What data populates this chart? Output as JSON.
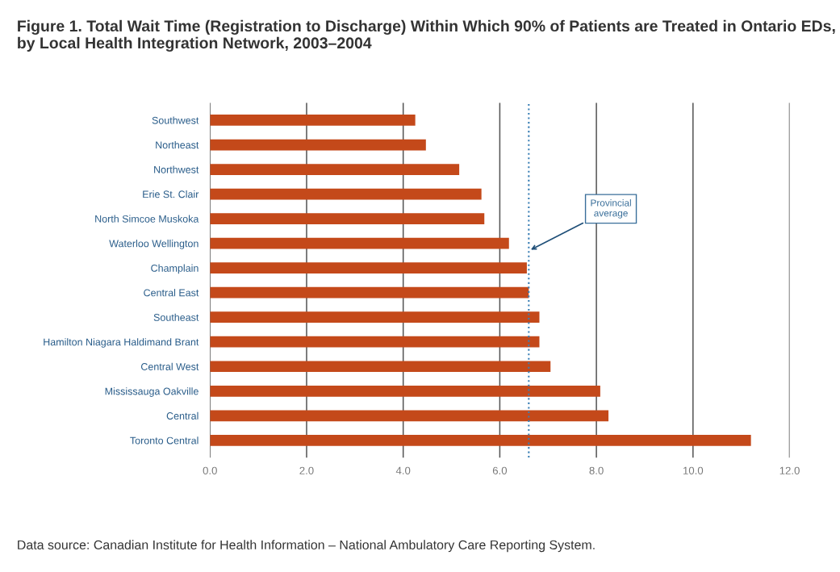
{
  "chart_data": {
    "type": "bar",
    "orientation": "horizontal",
    "title": "Figure 1. Total Wait Time (Registration to Discharge) Within Which 90% of Patients are Treated in Ontario EDs, by Local Health Integration Network, 2003–2004",
    "categories": [
      "Southwest",
      "Northeast",
      "Northwest",
      "Erie St. Clair",
      "North Simcoe Muskoka",
      "Waterloo Wellington",
      "Champlain",
      "Central East",
      "Southeast",
      "Hamilton Niagara Haldimand Brant",
      "Central West",
      "Mississauga Oakville",
      "Central",
      "Toronto Central"
    ],
    "values": [
      4.25,
      4.47,
      5.16,
      5.62,
      5.68,
      6.19,
      6.56,
      6.6,
      6.82,
      6.82,
      7.05,
      8.08,
      8.25,
      11.2
    ],
    "color": "#c4491a",
    "xlim": [
      0,
      12
    ],
    "xticks": [
      {
        "value": 0,
        "label": "0.0"
      },
      {
        "value": 2,
        "label": "2.0"
      },
      {
        "value": 4,
        "label": "4.0"
      },
      {
        "value": 6,
        "label": "6.0"
      },
      {
        "value": 8,
        "label": "8.0"
      },
      {
        "value": 10,
        "label": "10.0"
      },
      {
        "value": 12,
        "label": "12.0"
      }
    ],
    "grid": "x",
    "ref_lines": [
      {
        "axis": "x",
        "value": 6.6,
        "label": "Provincial average",
        "color": "#3a7fb5",
        "line_style": "dotted"
      }
    ],
    "annotations": [
      "Data source: Canadian Institute for Health Information – National Ambulatory Care Reporting System."
    ]
  }
}
